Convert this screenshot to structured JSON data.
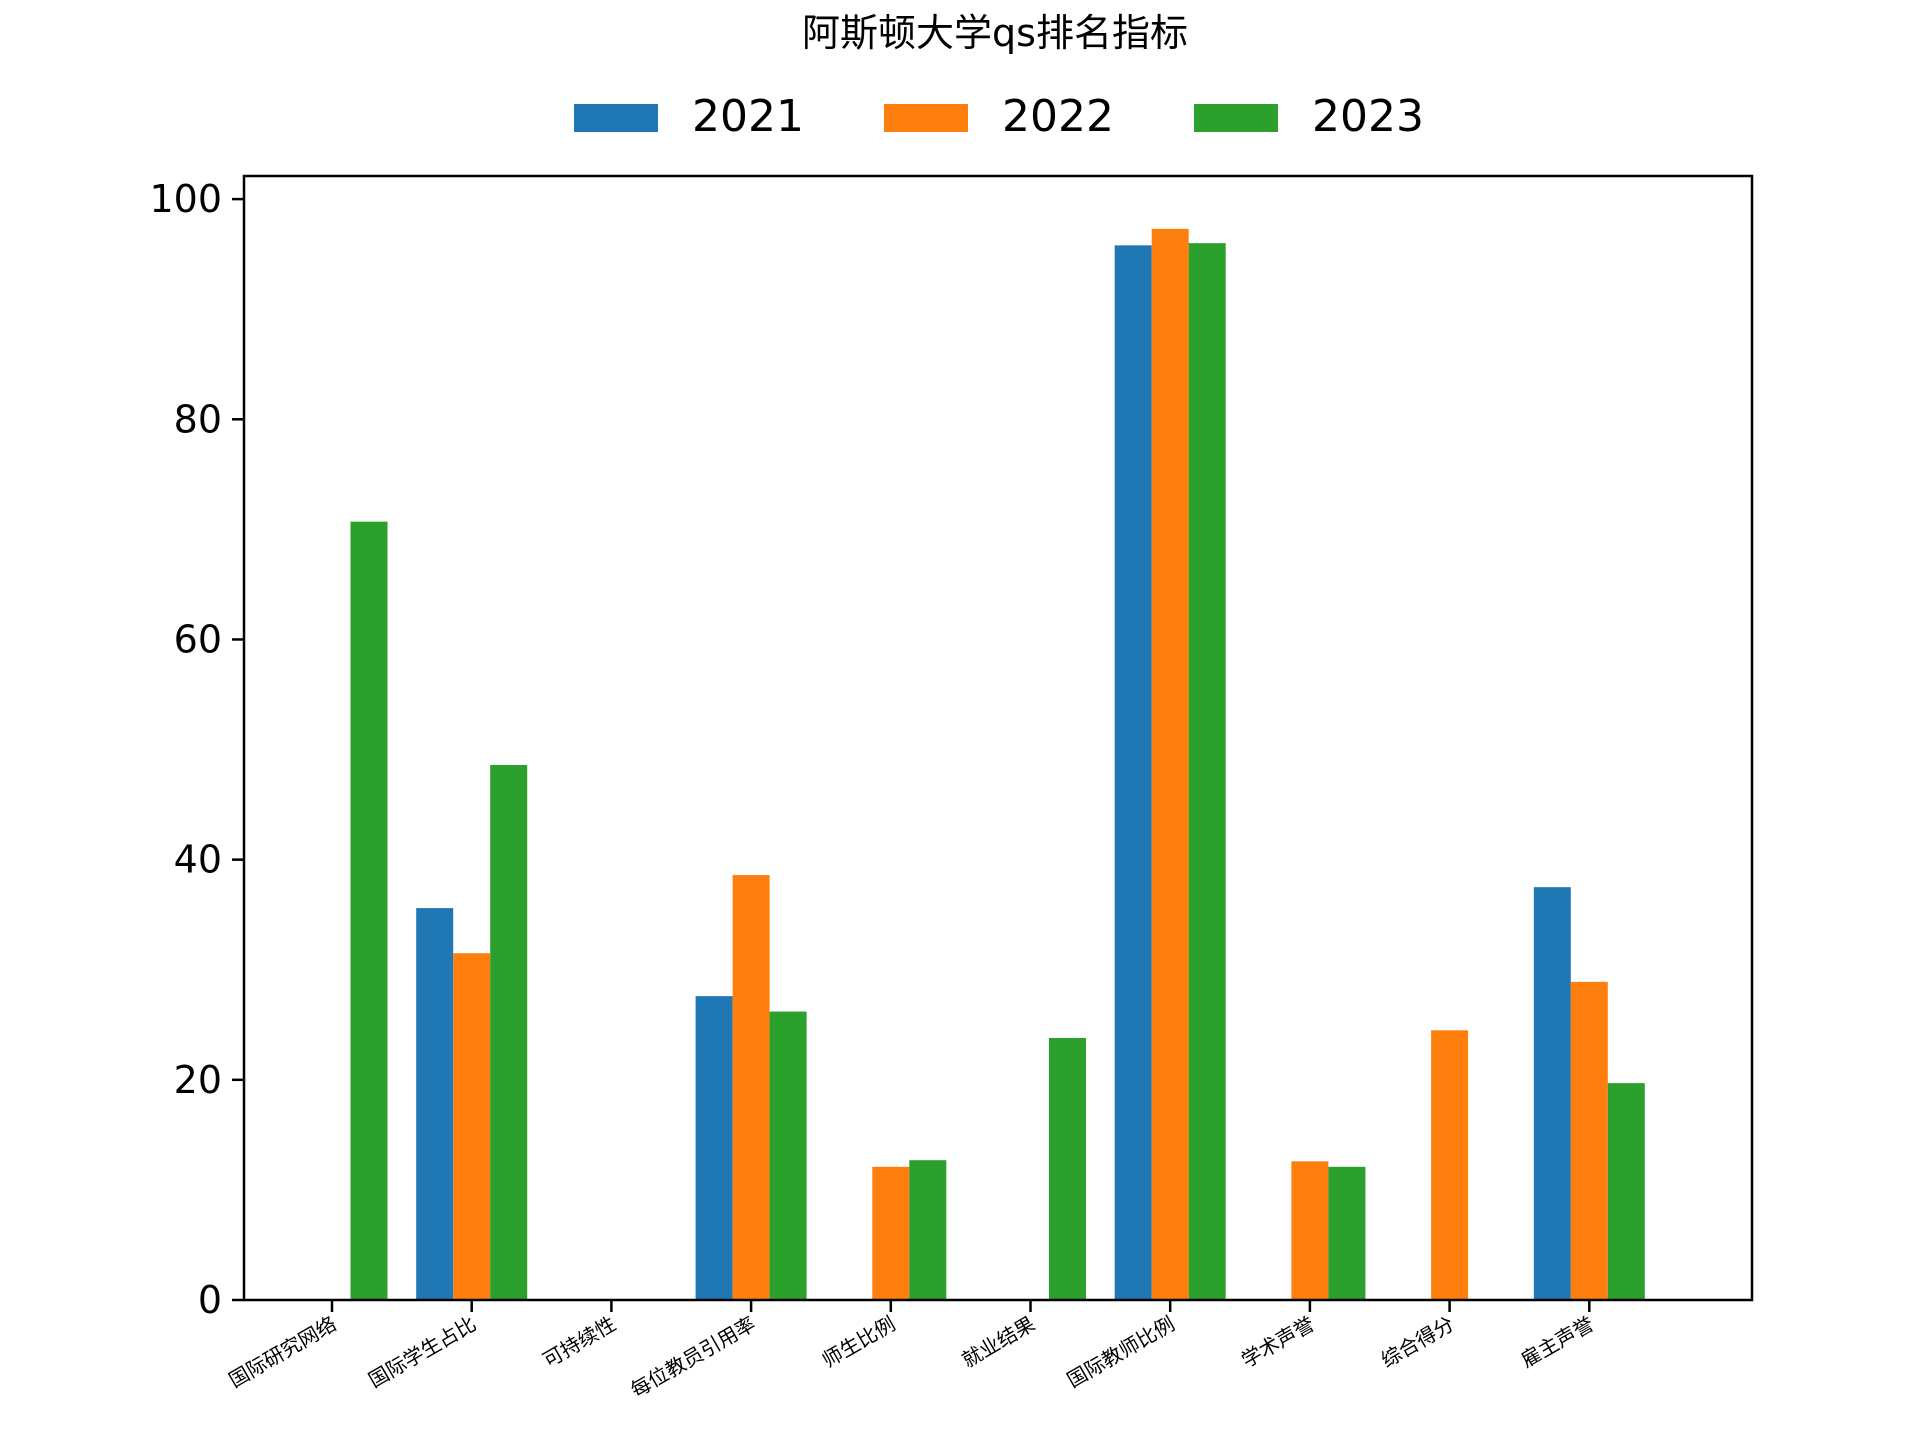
{
  "chart_data": {
    "type": "bar",
    "title": "阿斯顿大学qs排名指标",
    "xlabel": "",
    "ylabel": "",
    "categories": [
      "国际研究网络",
      "国际学生占比",
      "可持续性",
      "每位教员引用率",
      "师生比例",
      "就业结果",
      "国际教师比例",
      "学术声誉",
      "综合得分",
      "雇主声誉"
    ],
    "series": [
      {
        "name": "2021",
        "color": "#1f77b4",
        "values": [
          null,
          35.6,
          null,
          27.6,
          null,
          null,
          95.8,
          null,
          null,
          37.5
        ]
      },
      {
        "name": "2022",
        "color": "#ff7f0e",
        "values": [
          null,
          31.5,
          null,
          38.6,
          12.1,
          null,
          97.3,
          12.6,
          24.5,
          28.9
        ]
      },
      {
        "name": "2023",
        "color": "#2ca02c",
        "values": [
          70.7,
          48.6,
          null,
          26.2,
          12.7,
          23.8,
          96.0,
          12.1,
          null,
          19.7
        ]
      }
    ],
    "ylim": [
      0,
      102.1
    ],
    "yticks": [
      "0",
      "20",
      "40",
      "60",
      "80",
      "100"
    ],
    "grid": false,
    "legend_position": "top-center"
  }
}
